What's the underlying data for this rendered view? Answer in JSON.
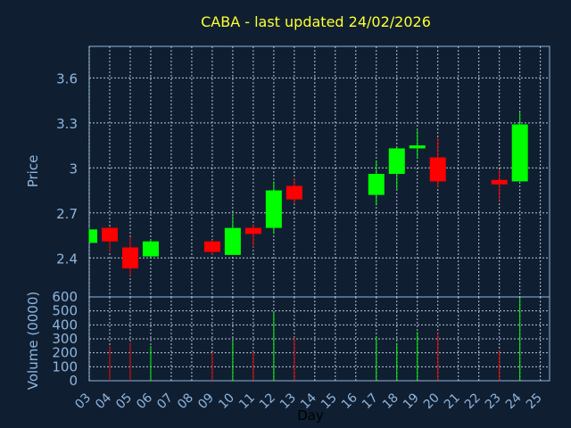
{
  "chart": {
    "title": "CABA - last updated 24/02/2026",
    "price_label": "Price",
    "volume_label": "Volume (0000)",
    "x_label": "Day"
  },
  "colors": {
    "background": "#0f1f31",
    "up": "#00ff00",
    "down": "#ff0000",
    "axis": "#8fb5df",
    "title": "#ffff33"
  },
  "chart_data": {
    "type": "candlestick",
    "title": "CABA - last updated 24/02/2026",
    "ylabel": "Price",
    "xlabel": "Day",
    "price_ylim": [
      2.14,
      3.81
    ],
    "price_ticks": [
      2.4,
      2.7,
      3,
      3.3,
      3.6
    ],
    "price_tick_labels": [
      "2.4",
      "2.7",
      "3",
      "3.3",
      "3.6"
    ],
    "volume_ylabel": "Volume (0000)",
    "volume_ylim": [
      0,
      600
    ],
    "volume_ticks": [
      0,
      100,
      200,
      300,
      400,
      500,
      600
    ],
    "volume_tick_labels": [
      "0",
      "100",
      "200",
      "300",
      "400",
      "500",
      "600"
    ],
    "x_ticks": [
      "03",
      "04",
      "05",
      "06",
      "07",
      "08",
      "09",
      "10",
      "11",
      "12",
      "13",
      "14",
      "15",
      "16",
      "17",
      "18",
      "19",
      "20",
      "21",
      "22",
      "23",
      "24",
      "25"
    ],
    "grid": true,
    "candles": [
      {
        "day": "03",
        "open": 2.5,
        "high": 2.6,
        "low": 2.5,
        "close": 2.59,
        "volume": 0
      },
      {
        "day": "04",
        "open": 2.6,
        "high": 2.61,
        "low": 2.44,
        "close": 2.51,
        "volume": 250
      },
      {
        "day": "05",
        "open": 2.47,
        "high": 2.54,
        "low": 2.28,
        "close": 2.33,
        "volume": 270
      },
      {
        "day": "06",
        "open": 2.41,
        "high": 2.52,
        "low": 2.4,
        "close": 2.51,
        "volume": 250
      },
      {
        "day": "09",
        "open": 2.51,
        "high": 2.52,
        "low": 2.42,
        "close": 2.44,
        "volume": 200
      },
      {
        "day": "10",
        "open": 2.42,
        "high": 2.68,
        "low": 2.42,
        "close": 2.6,
        "volume": 290
      },
      {
        "day": "11",
        "open": 2.6,
        "high": 2.62,
        "low": 2.47,
        "close": 2.56,
        "volume": 210
      },
      {
        "day": "12",
        "open": 2.6,
        "high": 2.91,
        "low": 2.56,
        "close": 2.85,
        "volume": 490
      },
      {
        "day": "13",
        "open": 2.88,
        "high": 2.93,
        "low": 2.76,
        "close": 2.79,
        "volume": 310
      },
      {
        "day": "17",
        "open": 2.82,
        "high": 3.05,
        "low": 2.75,
        "close": 2.96,
        "volume": 320
      },
      {
        "day": "18",
        "open": 2.96,
        "high": 3.14,
        "low": 2.85,
        "close": 3.13,
        "volume": 270
      },
      {
        "day": "19",
        "open": 3.13,
        "high": 3.25,
        "low": 3.06,
        "close": 3.15,
        "volume": 350
      },
      {
        "day": "20",
        "open": 3.07,
        "high": 3.2,
        "low": 2.87,
        "close": 2.91,
        "volume": 340
      },
      {
        "day": "23",
        "open": 2.92,
        "high": 2.99,
        "low": 2.78,
        "close": 2.89,
        "volume": 220
      },
      {
        "day": "24",
        "open": 2.91,
        "high": 3.37,
        "low": 2.91,
        "close": 3.29,
        "volume": 590
      }
    ]
  }
}
